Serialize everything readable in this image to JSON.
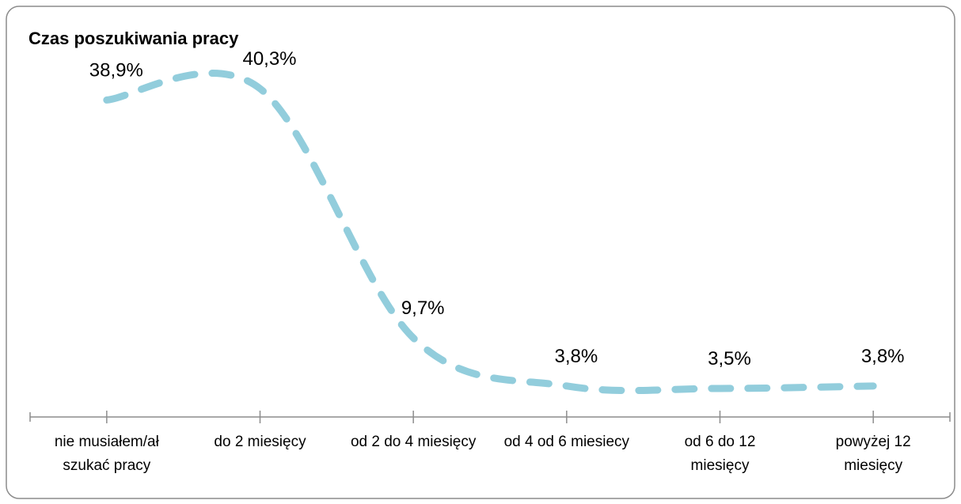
{
  "chart_data": {
    "type": "line",
    "title": "Czas poszukiwania pracy",
    "categories": [
      "nie musiałem/ał szukać pracy",
      "do 2 miesięcy",
      "od 2 do 4 miesięcy",
      "od 4 od 6 miesiecy",
      "od 6 do 12 miesięcy",
      "powyżej 12 miesięcy"
    ],
    "series": [
      {
        "name": "Czas poszukiwania pracy",
        "color": "#92cddc",
        "values": [
          38.9,
          40.3,
          9.7,
          3.8,
          3.5,
          3.8
        ],
        "value_labels": [
          "38,9%",
          "40,3%",
          "9,7%",
          "3,8%",
          "3,5%",
          "3,8%"
        ]
      }
    ],
    "smooth": true,
    "dashed": true
  }
}
